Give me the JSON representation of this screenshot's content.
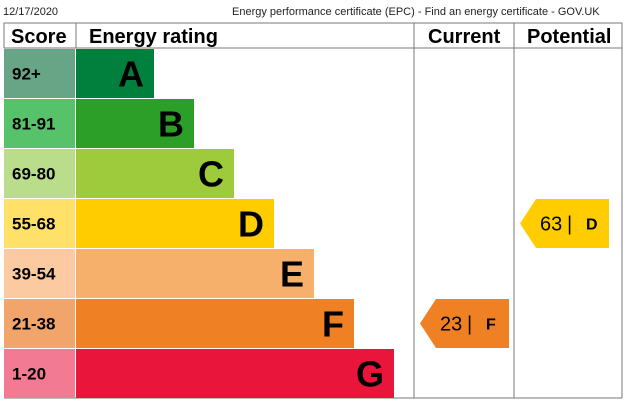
{
  "header": {
    "date": "12/17/2020",
    "page_title": "Energy performance certificate (EPC) - Find an energy certificate - GOV.UK"
  },
  "chart_data": {
    "type": "table",
    "columns": [
      "Score",
      "Energy rating",
      "Current",
      "Potential"
    ],
    "bands": [
      {
        "score": "92+",
        "letter": "A",
        "color": "#007f3d",
        "score_bg": "#68a586"
      },
      {
        "score": "81-91",
        "letter": "B",
        "color": "#2c9f29",
        "score_bg": "#56c26a"
      },
      {
        "score": "69-80",
        "letter": "C",
        "color": "#9dcb3c",
        "score_bg": "#b9dd8a"
      },
      {
        "score": "55-68",
        "letter": "D",
        "color": "#ffcc00",
        "score_bg": "#ffe169"
      },
      {
        "score": "39-54",
        "letter": "E",
        "color": "#f7af6c",
        "score_bg": "#fbcaa1"
      },
      {
        "score": "21-38",
        "letter": "F",
        "color": "#ef8023",
        "score_bg": "#f2a56a"
      },
      {
        "score": "1-20",
        "letter": "G",
        "color": "#e9153b",
        "score_bg": "#f27a92"
      }
    ],
    "current": {
      "value": 23,
      "letter": "F",
      "color": "#ef8023",
      "text_color": "#000000"
    },
    "potential": {
      "value": 63,
      "letter": "D",
      "color": "#ffcc00",
      "text_color": "#000000"
    }
  }
}
